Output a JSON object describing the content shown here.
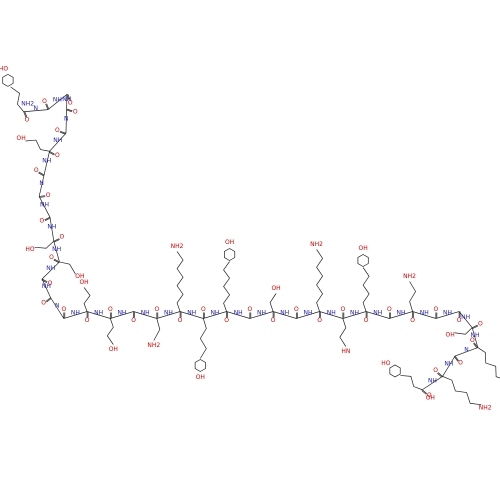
{
  "molecule": {
    "n_terminus": "NH2",
    "c_terminus": "OH",
    "carbonyl_labels": [
      "O",
      "O",
      "O",
      "O",
      "O",
      "O",
      "O",
      "O",
      "O",
      "O",
      "O",
      "O",
      "O",
      "O",
      "O",
      "O",
      "O",
      "O",
      "O",
      "O",
      "O",
      "O",
      "O",
      "O",
      "O",
      "O",
      "O",
      "O",
      "O",
      "O",
      "O",
      "O",
      "O",
      "O",
      "O",
      "O"
    ],
    "amide_labels": [
      "N",
      "NH",
      "NH",
      "N",
      "NH",
      "NH",
      "N",
      "NH",
      "NH",
      "NH",
      "NH",
      "NH",
      "N",
      "NH",
      "NH",
      "NH",
      "NH",
      "NH",
      "NH",
      "NH",
      "NH",
      "NH",
      "NH",
      "NH",
      "NH",
      "NH",
      "NH",
      "NH",
      "NH",
      "NH",
      "NH",
      "NH",
      "N",
      "NH",
      "NH"
    ],
    "side_chain_labels": [
      "HO",
      "OH",
      "HO",
      "OH",
      "OH",
      "OH",
      "NH2",
      "NH2",
      "OH",
      "OH",
      "OH",
      "NH2",
      "HN",
      "OH",
      "NH2",
      "OH",
      "NH2",
      "NH2",
      "HO"
    ]
  }
}
